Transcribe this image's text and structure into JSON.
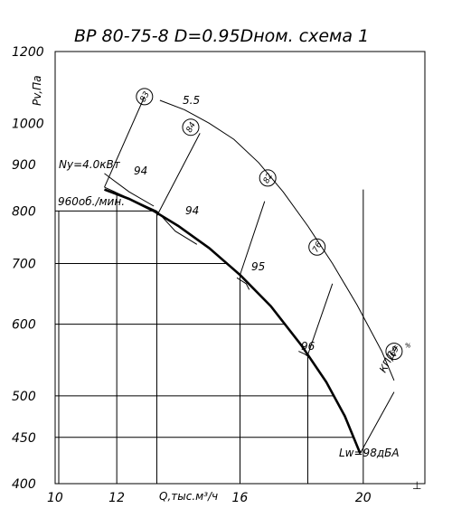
{
  "chart_data": {
    "type": "line",
    "title": "ВР 80-75-8  D=0.95Dном.  схема 1",
    "xlabel": "Q,тыс.м³/ч",
    "ylabel": "Pv,Па",
    "y_scale": "log",
    "xlim": [
      10,
      22
    ],
    "ylim": [
      400,
      1200
    ],
    "x_ticks": [
      10,
      12,
      16,
      20
    ],
    "y_ticks": [
      400,
      450,
      500,
      600,
      700,
      800,
      900,
      1000,
      1200
    ],
    "grid": true,
    "series": [
      {
        "points": [
          [
            11.6,
            845
          ],
          [
            12.4,
            825
          ],
          [
            13.2,
            800
          ],
          [
            14.0,
            770
          ],
          [
            15.0,
            728
          ],
          [
            16.0,
            680
          ],
          [
            17.0,
            628
          ],
          [
            18.0,
            568
          ],
          [
            18.8,
            518
          ],
          [
            19.4,
            475
          ],
          [
            19.9,
            432
          ]
        ]
      }
    ],
    "efficiency_lines": [
      {
        "label": "94",
        "points": [
          [
            11.6,
            880
          ],
          [
            12.4,
            840
          ],
          [
            13.2,
            810
          ]
        ]
      },
      {
        "label": "94",
        "points": [
          [
            13.3,
            800
          ],
          [
            13.9,
            760
          ],
          [
            14.6,
            735
          ]
        ]
      },
      {
        "label": "95",
        "points": [
          [
            15.9,
            675
          ],
          [
            16.2,
            665
          ],
          [
            16.3,
            655
          ]
        ]
      },
      {
        "label": "96",
        "points": [
          [
            17.9,
            560
          ],
          [
            18.1,
            556
          ],
          [
            18.2,
            553
          ]
        ]
      }
    ],
    "circle_labels": [
      {
        "label": "83",
        "q": 12.9,
        "pv": 1070
      },
      {
        "label": "84",
        "q": 14.4,
        "pv": 990
      },
      {
        "label": "82",
        "q": 16.9,
        "pv": 870
      },
      {
        "label": "76",
        "q": 18.5,
        "pv": 730
      },
      {
        "label": "69",
        "q": 21.0,
        "pv": 560
      }
    ],
    "annotations": {
      "power": "Ny=4.0кВт",
      "speed": "960об./мин.",
      "sound": "Lw=98дБА",
      "efficiency": "КПД=",
      "power_max": "5.5",
      "eff_94a": "94",
      "eff_94b": "94",
      "eff_95": "95",
      "eff_96": "96",
      "cursor": "⊥"
    }
  }
}
